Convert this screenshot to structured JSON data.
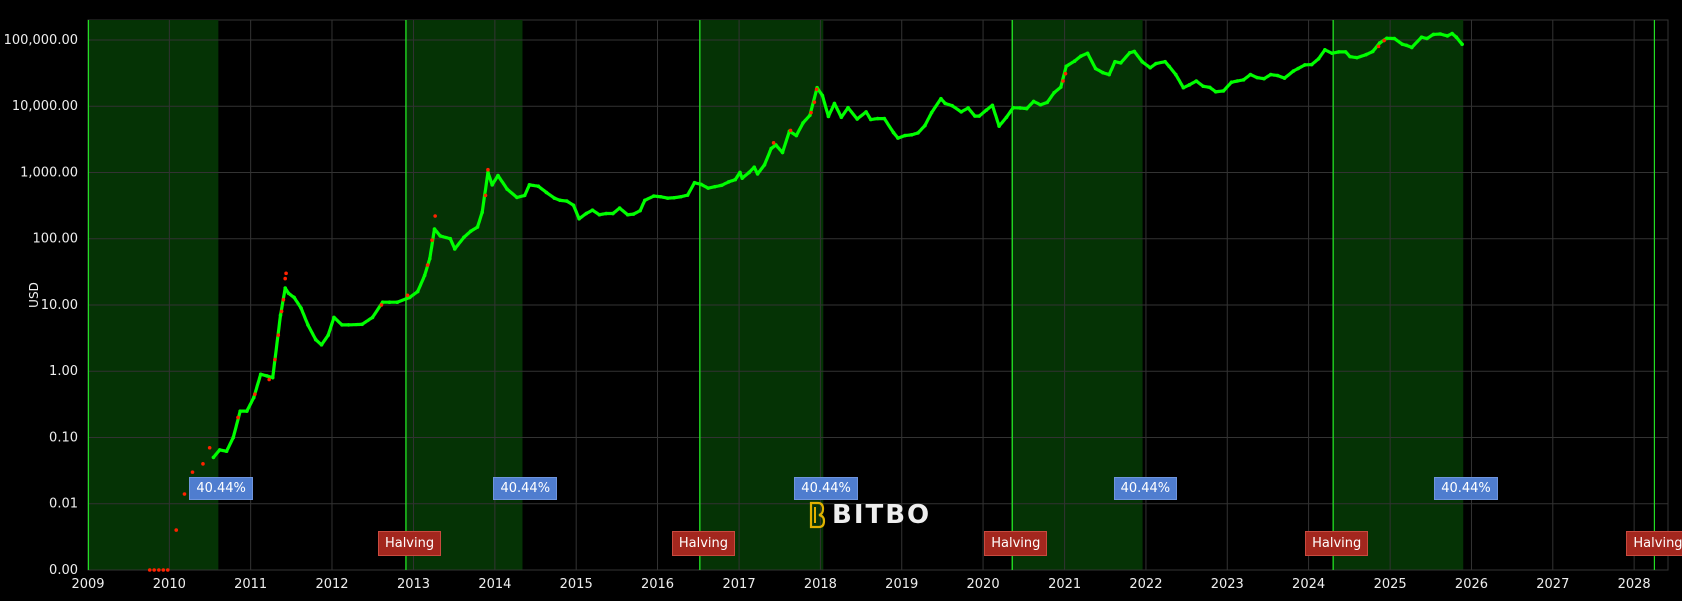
{
  "chart_data": {
    "type": "scatter",
    "title": "",
    "xlabel": "",
    "ylabel": "USD",
    "yscale": "log",
    "ylim": [
      0.001,
      200000
    ],
    "xlim": [
      "2009-01-01",
      "2028-06-01"
    ],
    "x_ticks": [
      "2009",
      "2010",
      "2011",
      "2012",
      "2013",
      "2014",
      "2015",
      "2016",
      "2017",
      "2018",
      "2019",
      "2020",
      "2021",
      "2022",
      "2023",
      "2024",
      "2025",
      "2026",
      "2027",
      "2028"
    ],
    "y_ticks": [
      {
        "value": 0.001,
        "label": "0.00"
      },
      {
        "value": 0.01,
        "label": "0.01"
      },
      {
        "value": 0.1,
        "label": "0.10"
      },
      {
        "value": 1,
        "label": "1.00"
      },
      {
        "value": 10,
        "label": "10.00"
      },
      {
        "value": 100,
        "label": "100.00"
      },
      {
        "value": 1000,
        "label": "1,000.00"
      },
      {
        "value": 10000,
        "label": "10,000.00"
      },
      {
        "value": 100000,
        "label": "100,000.00"
      }
    ],
    "grid": true,
    "colors": {
      "price": "#00ff00",
      "price_hot": "#ff2200",
      "band": "#053305",
      "halving_line": "#22dd22",
      "grid": "#333333"
    },
    "shaded_periods": [
      {
        "start": "2009-01-03",
        "end": "2010-08-09",
        "label": "40.44%"
      },
      {
        "start": "2012-11-28",
        "end": "2014-05-05",
        "label": "40.44%"
      },
      {
        "start": "2016-07-09",
        "end": "2018-01-14",
        "label": "40.44%"
      },
      {
        "start": "2020-05-11",
        "end": "2021-12-17",
        "label": "40.44%"
      },
      {
        "start": "2024-04-20",
        "end": "2025-11-25",
        "label": "40.44%"
      }
    ],
    "halvings": [
      {
        "date": "2012-11-28",
        "label": "Halving"
      },
      {
        "date": "2016-07-09",
        "label": "Halving"
      },
      {
        "date": "2020-05-11",
        "label": "Halving"
      },
      {
        "date": "2024-04-20",
        "label": "Halving"
      },
      {
        "date": "2028-04-01",
        "label": "Halving"
      }
    ],
    "series": [
      {
        "name": "price",
        "points": [
          [
            "2010-07-18",
            0.05
          ],
          [
            "2010-08-15",
            0.065
          ],
          [
            "2010-09-15",
            0.062
          ],
          [
            "2010-10-15",
            0.1
          ],
          [
            "2010-11-15",
            0.25
          ],
          [
            "2010-12-15",
            0.25
          ],
          [
            "2011-01-15",
            0.4
          ],
          [
            "2011-02-15",
            0.9
          ],
          [
            "2011-03-15",
            0.85
          ],
          [
            "2011-04-10",
            0.8
          ],
          [
            "2011-05-15",
            7
          ],
          [
            "2011-06-05",
            18
          ],
          [
            "2011-06-20",
            15
          ],
          [
            "2011-07-15",
            13
          ],
          [
            "2011-08-15",
            9
          ],
          [
            "2011-09-15",
            5
          ],
          [
            "2011-10-20",
            3
          ],
          [
            "2011-11-15",
            2.5
          ],
          [
            "2011-12-15",
            3.5
          ],
          [
            "2012-01-10",
            6.5
          ],
          [
            "2012-02-15",
            5
          ],
          [
            "2012-03-15",
            5
          ],
          [
            "2012-05-15",
            5.1
          ],
          [
            "2012-07-01",
            6.5
          ],
          [
            "2012-08-15",
            11
          ],
          [
            "2012-09-15",
            11
          ],
          [
            "2012-10-20",
            11
          ],
          [
            "2012-12-15",
            13
          ],
          [
            "2013-01-20",
            16
          ],
          [
            "2013-02-20",
            28
          ],
          [
            "2013-03-15",
            50
          ],
          [
            "2013-04-05",
            140
          ],
          [
            "2013-05-01",
            110
          ],
          [
            "2013-06-15",
            100
          ],
          [
            "2013-07-05",
            70
          ],
          [
            "2013-08-15",
            105
          ],
          [
            "2013-09-15",
            130
          ],
          [
            "2013-10-15",
            150
          ],
          [
            "2013-11-05",
            250
          ],
          [
            "2013-12-01",
            1000
          ],
          [
            "2013-12-20",
            650
          ],
          [
            "2014-01-15",
            900
          ],
          [
            "2014-02-25",
            560
          ],
          [
            "2014-04-10",
            420
          ],
          [
            "2014-05-15",
            450
          ],
          [
            "2014-06-05",
            650
          ],
          [
            "2014-07-15",
            620
          ],
          [
            "2014-08-20",
            500
          ],
          [
            "2014-09-25",
            410
          ],
          [
            "2014-10-20",
            380
          ],
          [
            "2014-11-20",
            370
          ],
          [
            "2014-12-20",
            320
          ],
          [
            "2015-01-14",
            200
          ],
          [
            "2015-02-15",
            240
          ],
          [
            "2015-03-15",
            270
          ],
          [
            "2015-04-15",
            230
          ],
          [
            "2015-05-15",
            240
          ],
          [
            "2015-06-15",
            240
          ],
          [
            "2015-07-15",
            290
          ],
          [
            "2015-08-20",
            230
          ],
          [
            "2015-09-15",
            235
          ],
          [
            "2015-10-15",
            265
          ],
          [
            "2015-11-05",
            380
          ],
          [
            "2015-12-15",
            440
          ],
          [
            "2016-01-15",
            430
          ],
          [
            "2016-02-15",
            410
          ],
          [
            "2016-03-15",
            415
          ],
          [
            "2016-04-15",
            430
          ],
          [
            "2016-05-15",
            455
          ],
          [
            "2016-06-15",
            700
          ],
          [
            "2016-07-15",
            660
          ],
          [
            "2016-08-15",
            580
          ],
          [
            "2016-09-15",
            610
          ],
          [
            "2016-10-15",
            640
          ],
          [
            "2016-11-15",
            720
          ],
          [
            "2016-12-15",
            780
          ],
          [
            "2017-01-05",
            1000
          ],
          [
            "2017-01-15",
            820
          ],
          [
            "2017-02-15",
            1000
          ],
          [
            "2017-03-10",
            1200
          ],
          [
            "2017-03-25",
            950
          ],
          [
            "2017-04-25",
            1300
          ],
          [
            "2017-05-25",
            2300
          ],
          [
            "2017-06-15",
            2600
          ],
          [
            "2017-07-15",
            2000
          ],
          [
            "2017-08-15",
            4200
          ],
          [
            "2017-09-15",
            3600
          ],
          [
            "2017-10-15",
            5600
          ],
          [
            "2017-11-15",
            7300
          ],
          [
            "2017-12-17",
            19000
          ],
          [
            "2018-01-10",
            14500
          ],
          [
            "2018-02-06",
            7000
          ],
          [
            "2018-03-05",
            11000
          ],
          [
            "2018-04-05",
            6800
          ],
          [
            "2018-05-05",
            9500
          ],
          [
            "2018-06-15",
            6400
          ],
          [
            "2018-07-25",
            8200
          ],
          [
            "2018-08-15",
            6300
          ],
          [
            "2018-09-15",
            6500
          ],
          [
            "2018-10-15",
            6500
          ],
          [
            "2018-11-25",
            4000
          ],
          [
            "2018-12-15",
            3300
          ],
          [
            "2019-01-15",
            3600
          ],
          [
            "2019-02-15",
            3700
          ],
          [
            "2019-03-15",
            3950
          ],
          [
            "2019-04-15",
            5100
          ],
          [
            "2019-05-15",
            8000
          ],
          [
            "2019-06-26",
            13000
          ],
          [
            "2019-07-15",
            11000
          ],
          [
            "2019-08-15",
            10200
          ],
          [
            "2019-09-25",
            8200
          ],
          [
            "2019-10-26",
            9400
          ],
          [
            "2019-11-25",
            7100
          ],
          [
            "2019-12-15",
            7100
          ],
          [
            "2020-01-15",
            8700
          ],
          [
            "2020-02-12",
            10300
          ],
          [
            "2020-03-13",
            5000
          ],
          [
            "2020-04-15",
            6800
          ],
          [
            "2020-05-15",
            9500
          ],
          [
            "2020-06-15",
            9400
          ],
          [
            "2020-07-15",
            9200
          ],
          [
            "2020-08-15",
            11800
          ],
          [
            "2020-09-15",
            10500
          ],
          [
            "2020-10-15",
            11400
          ],
          [
            "2020-11-15",
            16000
          ],
          [
            "2020-12-15",
            19400
          ],
          [
            "2021-01-08",
            40000
          ],
          [
            "2021-02-15",
            48000
          ],
          [
            "2021-03-15",
            57000
          ],
          [
            "2021-04-14",
            63000
          ],
          [
            "2021-05-20",
            37000
          ],
          [
            "2021-06-22",
            32000
          ],
          [
            "2021-07-20",
            30000
          ],
          [
            "2021-08-15",
            47000
          ],
          [
            "2021-09-10",
            45000
          ],
          [
            "2021-10-20",
            64000
          ],
          [
            "2021-11-10",
            67000
          ],
          [
            "2021-12-15",
            47000
          ],
          [
            "2022-01-20",
            38000
          ],
          [
            "2022-02-15",
            44000
          ],
          [
            "2022-03-28",
            47000
          ],
          [
            "2022-04-15",
            40000
          ],
          [
            "2022-05-15",
            30000
          ],
          [
            "2022-06-18",
            19000
          ],
          [
            "2022-07-15",
            21000
          ],
          [
            "2022-08-15",
            24000
          ],
          [
            "2022-09-15",
            20000
          ],
          [
            "2022-10-15",
            19200
          ],
          [
            "2022-11-10",
            16500
          ],
          [
            "2022-12-15",
            17000
          ],
          [
            "2023-01-20",
            23000
          ],
          [
            "2023-02-15",
            24000
          ],
          [
            "2023-03-15",
            25000
          ],
          [
            "2023-04-15",
            30000
          ],
          [
            "2023-05-15",
            27000
          ],
          [
            "2023-06-15",
            26000
          ],
          [
            "2023-07-15",
            30000
          ],
          [
            "2023-08-15",
            29000
          ],
          [
            "2023-09-15",
            26500
          ],
          [
            "2023-10-25",
            34000
          ],
          [
            "2023-11-15",
            37000
          ],
          [
            "2023-12-15",
            42000
          ],
          [
            "2024-01-15",
            42500
          ],
          [
            "2024-02-15",
            52000
          ],
          [
            "2024-03-14",
            71000
          ],
          [
            "2024-04-15",
            63000
          ],
          [
            "2024-05-15",
            66000
          ],
          [
            "2024-06-15",
            66000
          ],
          [
            "2024-07-05",
            56000
          ],
          [
            "2024-08-05",
            54000
          ],
          [
            "2024-09-15",
            60000
          ],
          [
            "2024-10-15",
            67000
          ],
          [
            "2024-11-15",
            90000
          ],
          [
            "2024-12-17",
            106000
          ],
          [
            "2025-01-20",
            105000
          ],
          [
            "2025-02-25",
            86000
          ],
          [
            "2025-03-15",
            83000
          ],
          [
            "2025-04-08",
            77000
          ],
          [
            "2025-05-22",
            110000
          ],
          [
            "2025-06-15",
            105000
          ],
          [
            "2025-07-14",
            121000
          ],
          [
            "2025-08-14",
            123000
          ],
          [
            "2025-09-15",
            115000
          ],
          [
            "2025-10-06",
            125000
          ],
          [
            "2025-10-25",
            110000
          ],
          [
            "2025-11-20",
            86000
          ]
        ]
      },
      {
        "name": "price-hot",
        "points": [
          [
            "2009-10-05",
            0.001
          ],
          [
            "2009-10-25",
            0.001
          ],
          [
            "2009-11-15",
            0.001
          ],
          [
            "2009-12-05",
            0.001
          ],
          [
            "2009-12-25",
            0.001
          ],
          [
            "2010-02-01",
            0.004
          ],
          [
            "2010-03-10",
            0.014
          ],
          [
            "2010-04-15",
            0.03
          ],
          [
            "2010-06-01",
            0.04
          ],
          [
            "2010-07-01",
            0.07
          ],
          [
            "2010-11-05",
            0.2
          ],
          [
            "2011-01-20",
            0.45
          ],
          [
            "2011-03-25",
            0.75
          ],
          [
            "2011-04-20",
            1.5
          ],
          [
            "2011-05-05",
            3.5
          ],
          [
            "2011-05-20",
            8
          ],
          [
            "2011-05-28",
            12
          ],
          [
            "2011-06-05",
            25
          ],
          [
            "2011-06-09",
            30
          ],
          [
            "2012-08-10",
            10
          ],
          [
            "2012-12-05",
            14
          ],
          [
            "2013-03-05",
            40
          ],
          [
            "2013-03-25",
            95
          ],
          [
            "2013-04-08",
            220
          ],
          [
            "2013-11-20",
            450
          ],
          [
            "2013-12-01",
            1100
          ],
          [
            "2017-06-05",
            2800
          ],
          [
            "2017-08-20",
            4300
          ],
          [
            "2017-11-20",
            8000
          ],
          [
            "2017-12-05",
            11500
          ],
          [
            "2017-12-15",
            18000
          ],
          [
            "2020-12-25",
            24000
          ],
          [
            "2021-01-05",
            31000
          ],
          [
            "2024-11-10",
            80000
          ],
          [
            "2024-12-05",
            98000
          ]
        ]
      }
    ]
  },
  "watermark": {
    "text": "BITBO"
  }
}
